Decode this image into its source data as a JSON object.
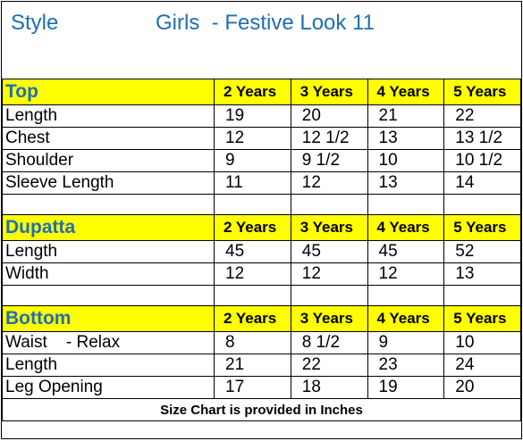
{
  "title": {
    "style_label": "Style",
    "main": "Girls  - Festive Look 11"
  },
  "sections": [
    {
      "name": "Top",
      "headers": [
        "2 Years",
        "3 Years",
        "4 Years",
        "5 Years"
      ],
      "rows": [
        {
          "label": "Length",
          "values": [
            "19",
            "20",
            "21",
            "22"
          ]
        },
        {
          "label": "Chest",
          "values": [
            "12",
            "12 1/2",
            "13",
            "13 1/2"
          ]
        },
        {
          "label": "Shoulder",
          "values": [
            "9",
            "9 1/2",
            "10",
            "10 1/2"
          ]
        },
        {
          "label": "Sleeve Length",
          "values": [
            "11",
            "12",
            "13",
            "14"
          ]
        }
      ]
    },
    {
      "name": "Dupatta",
      "headers": [
        "2 Years",
        "3 Years",
        "4 Years",
        "5 Years"
      ],
      "rows": [
        {
          "label": "Length",
          "values": [
            "45",
            "45",
            "45",
            "52"
          ]
        },
        {
          "label": "Width",
          "values": [
            "12",
            "12",
            "12",
            "13"
          ]
        }
      ]
    },
    {
      "name": "Bottom",
      "headers": [
        "2 Years",
        "3 Years",
        "4 Years",
        "5 Years"
      ],
      "rows": [
        {
          "label": "Waist    - Relax",
          "values": [
            "8",
            "8 1/2",
            "9",
            "10"
          ]
        },
        {
          "label": "Length",
          "values": [
            "21",
            "22",
            "23",
            "24"
          ]
        },
        {
          "label": "Leg Opening",
          "values": [
            "17",
            "18",
            "19",
            "20"
          ]
        }
      ]
    }
  ],
  "footer_note": "Size Chart is provided in Inches",
  "colors": {
    "title": "#1f6eb5",
    "header_fill": "#ffff00"
  }
}
